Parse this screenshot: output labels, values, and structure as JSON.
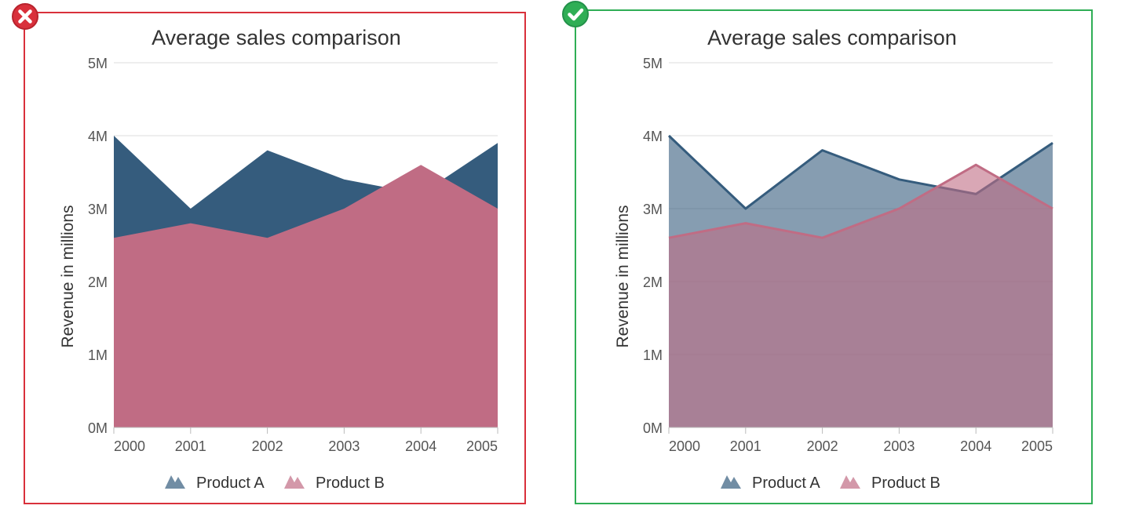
{
  "panels": [
    {
      "status": "incorrect",
      "status_icon": "x-circle-icon",
      "border_color": "#d9303b",
      "fill_opacity": 1.0,
      "outline": false
    },
    {
      "status": "correct",
      "status_icon": "check-circle-icon",
      "border_color": "#2fae55",
      "fill_opacity": 0.6,
      "outline": true
    }
  ],
  "chart_data": [
    {
      "type": "area",
      "title": "Average sales comparison",
      "xlabel": "",
      "ylabel": "Revenue in millions",
      "x": [
        "2000",
        "2001",
        "2002",
        "2003",
        "2004",
        "2005"
      ],
      "y_ticks": [
        "0M",
        "1M",
        "2M",
        "3M",
        "4M",
        "5M"
      ],
      "ylim": [
        0,
        5
      ],
      "grid": true,
      "legend_position": "bottom",
      "series": [
        {
          "name": "Product A",
          "values": [
            4.0,
            3.0,
            3.8,
            3.4,
            3.2,
            3.9
          ],
          "color": "#355c7d"
        },
        {
          "name": "Product B",
          "values": [
            2.6,
            2.8,
            2.6,
            3.0,
            3.6,
            3.0
          ],
          "color": "#c06c84"
        }
      ]
    },
    {
      "type": "area",
      "title": "Average sales comparison",
      "xlabel": "",
      "ylabel": "Revenue in millions",
      "x": [
        "2000",
        "2001",
        "2002",
        "2003",
        "2004",
        "2005"
      ],
      "y_ticks": [
        "0M",
        "1M",
        "2M",
        "3M",
        "4M",
        "5M"
      ],
      "ylim": [
        0,
        5
      ],
      "grid": true,
      "legend_position": "bottom",
      "series": [
        {
          "name": "Product A",
          "values": [
            4.0,
            3.0,
            3.8,
            3.4,
            3.2,
            3.9
          ],
          "color": "#355c7d"
        },
        {
          "name": "Product B",
          "values": [
            2.6,
            2.8,
            2.6,
            3.0,
            3.6,
            3.0
          ],
          "color": "#c06c84"
        }
      ]
    }
  ]
}
